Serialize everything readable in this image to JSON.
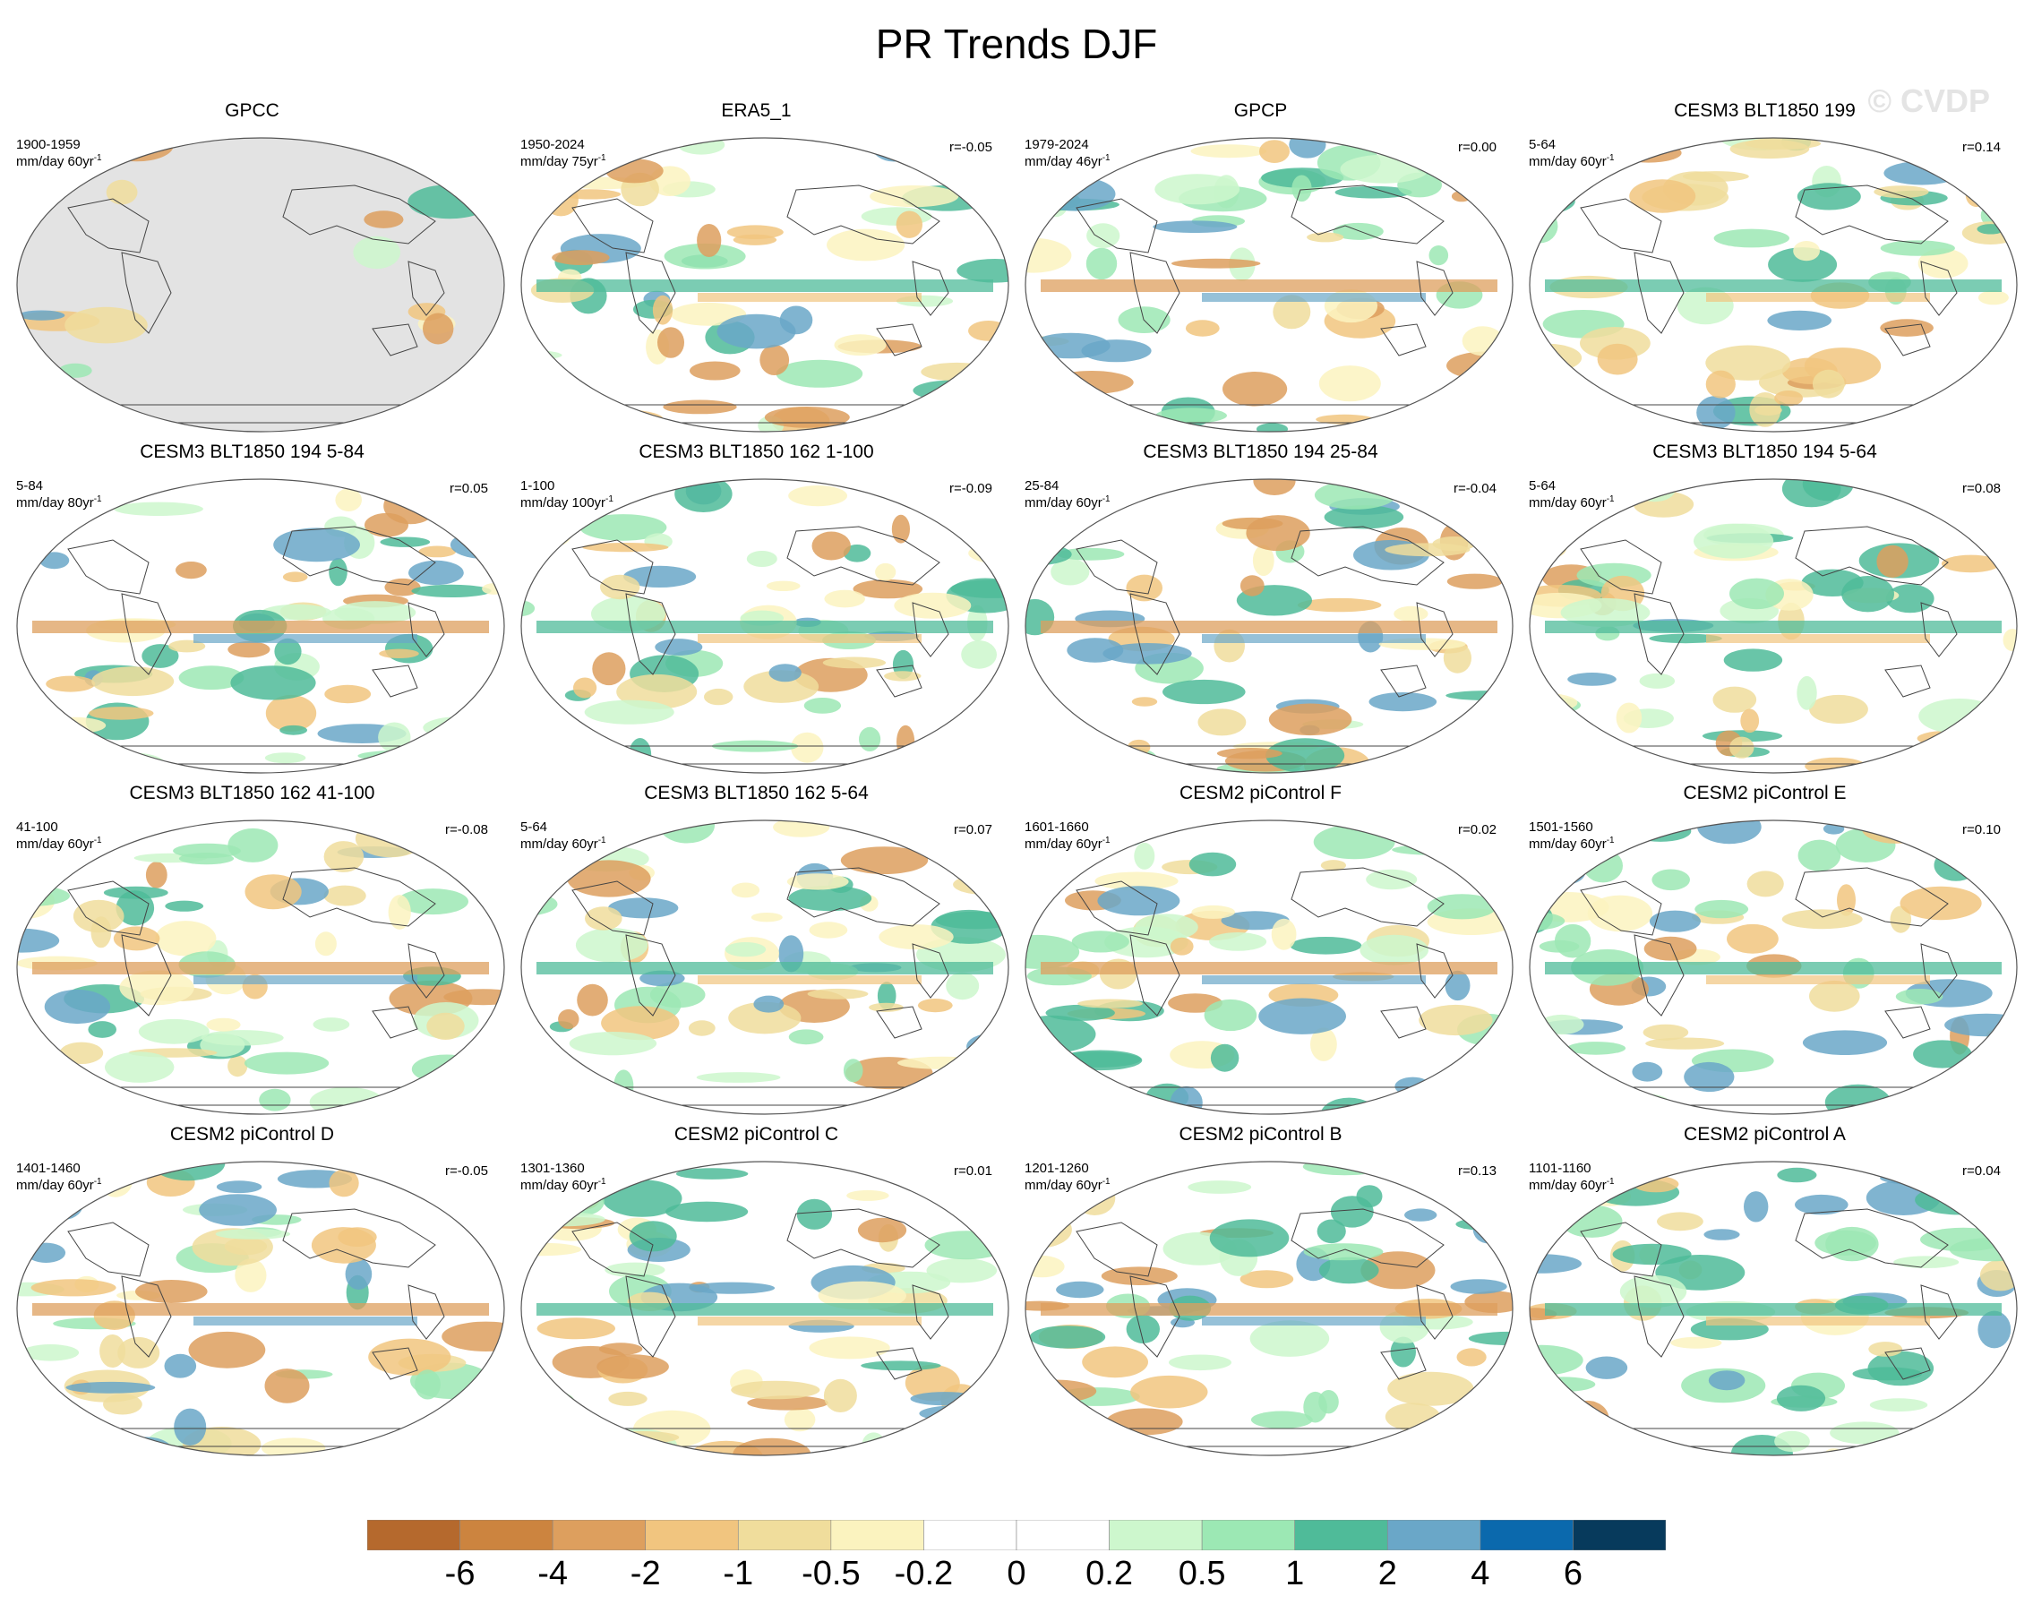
{
  "title": "PR Trends DJF",
  "watermark": "© CVDP",
  "colors": {
    "bins": [
      "#b5692d",
      "#cc843f",
      "#dd9f5e",
      "#f1c57f",
      "#f0dd9c",
      "#fbf3bf",
      "#ffffff",
      "#ffffff",
      "#cdf7cd",
      "#9ce8b4",
      "#4fbb99",
      "#6aa7c8",
      "#0b69ad",
      "#073a5c"
    ],
    "land_mask": "#e3e3e3",
    "outline": "#444444"
  },
  "colorbar_labels": [
    "-6",
    "-4",
    "-2",
    "-1",
    "-0.5",
    "-0.2",
    "0",
    "0.2",
    "0.5",
    "1",
    "2",
    "4",
    "6"
  ],
  "panels": [
    {
      "title": "GPCC",
      "period": "1900-1959",
      "units": "mm/day 60yr",
      "r": "",
      "mask": true
    },
    {
      "title": "ERA5_1",
      "period": "1950-2024",
      "units": "mm/day 75yr",
      "r": "r=-0.05",
      "mask": false
    },
    {
      "title": "GPCP",
      "period": "1979-2024",
      "units": "mm/day 46yr",
      "r": "r=0.00",
      "mask": false
    },
    {
      "title": "CESM3 BLT1850 199",
      "period": "5-64",
      "units": "mm/day 60yr",
      "r": "r=0.14",
      "mask": false
    },
    {
      "title": "CESM3 BLT1850 194 5-84",
      "period": "5-84",
      "units": "mm/day 80yr",
      "r": "r=0.05",
      "mask": false
    },
    {
      "title": "CESM3 BLT1850 162 1-100",
      "period": "1-100",
      "units": "mm/day 100yr",
      "r": "r=-0.09",
      "mask": false
    },
    {
      "title": "CESM3 BLT1850 194 25-84",
      "period": "25-84",
      "units": "mm/day 60yr",
      "r": "r=-0.04",
      "mask": false
    },
    {
      "title": "CESM3 BLT1850 194 5-64",
      "period": "5-64",
      "units": "mm/day 60yr",
      "r": "r=0.08",
      "mask": false
    },
    {
      "title": "CESM3 BLT1850 162 41-100",
      "period": "41-100",
      "units": "mm/day 60yr",
      "r": "r=-0.08",
      "mask": false
    },
    {
      "title": "CESM3 BLT1850 162 5-64",
      "period": "5-64",
      "units": "mm/day 60yr",
      "r": "r=0.07",
      "mask": false
    },
    {
      "title": "CESM2 piControl F",
      "period": "1601-1660",
      "units": "mm/day 60yr",
      "r": "r=0.02",
      "mask": false
    },
    {
      "title": "CESM2 piControl E",
      "period": "1501-1560",
      "units": "mm/day 60yr",
      "r": "r=0.10",
      "mask": false
    },
    {
      "title": "CESM2 piControl D",
      "period": "1401-1460",
      "units": "mm/day 60yr",
      "r": "r=-0.05",
      "mask": false
    },
    {
      "title": "CESM2 piControl C",
      "period": "1301-1360",
      "units": "mm/day 60yr",
      "r": "r=0.01",
      "mask": false
    },
    {
      "title": "CESM2 piControl B",
      "period": "1201-1260",
      "units": "mm/day 60yr",
      "r": "r=0.13",
      "mask": false
    },
    {
      "title": "CESM2 piControl A",
      "period": "1101-1160",
      "units": "mm/day 60yr",
      "r": "r=0.04",
      "mask": false
    }
  ]
}
